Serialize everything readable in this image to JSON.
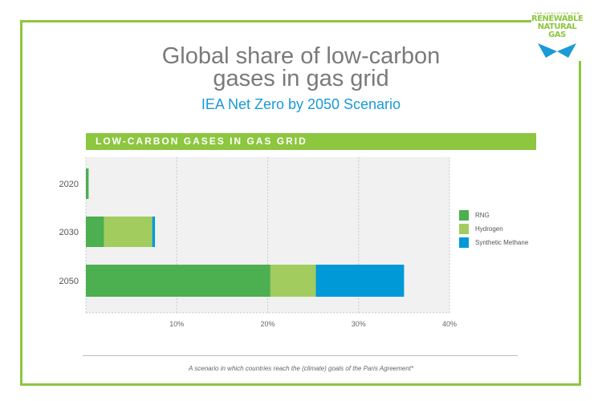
{
  "logo": {
    "line1": "THE COALITION FOR",
    "line2": "RENEWABLE",
    "line3": "NATURAL GAS"
  },
  "title_line1": "Global share of low-carbon",
  "title_line2": "gases in gas grid",
  "subtitle": "IEA Net Zero by 2050 Scenario",
  "footnote": "A scenario in which countries reach the (climate) goals of the Paris Agreement*",
  "chart_data": {
    "type": "bar",
    "orientation": "horizontal",
    "stacked": true,
    "title": "LOW-CARBON GASES IN GAS GRID",
    "categories": [
      "2020",
      "2030",
      "2050"
    ],
    "series": [
      {
        "name": "RNG",
        "color": "#4caf50",
        "values": [
          0.3,
          2.0,
          20.3
        ]
      },
      {
        "name": "Hydrogen",
        "color": "#a2cc5e",
        "values": [
          0,
          5.3,
          5.0
        ]
      },
      {
        "name": "Synthetic Methane",
        "color": "#0099d8",
        "values": [
          0,
          0.3,
          9.7
        ]
      }
    ],
    "xlim": [
      0,
      40
    ],
    "xticks": [
      10,
      20,
      30,
      40
    ],
    "xtick_labels": [
      "10%",
      "20%",
      "30%",
      "40%"
    ],
    "grid": true,
    "legend_position": "right"
  }
}
